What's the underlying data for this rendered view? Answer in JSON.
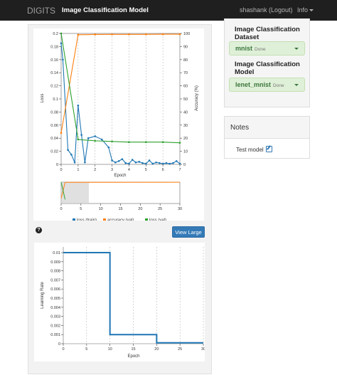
{
  "navbar": {
    "brand": "DIGITS",
    "title": "Image Classification Model",
    "user": "shashank (Logout)",
    "info": "Info"
  },
  "sidebar": {
    "dataset_heading_1": "Image Classification",
    "dataset_heading_2": "Dataset",
    "dataset_name": "mnist",
    "dataset_status": "Done",
    "model_heading_1": "Image Classification",
    "model_heading_2": "Model",
    "model_name": "lenet_mnist",
    "model_status": "Done"
  },
  "notes": {
    "heading": "Notes",
    "text": "Test model"
  },
  "buttons": {
    "view_large": "View Large",
    "help": "?"
  },
  "colors": {
    "loss_train": "#1f77b4",
    "accuracy_val": "#ff7f0e",
    "loss_val": "#2ca02c",
    "lr": "#1f77b4"
  },
  "chart_data": [
    {
      "type": "line",
      "xlabel": "Epoch",
      "ylabel": "Loss",
      "y2label": "Accuracy (%)",
      "xlim": [
        0,
        7
      ],
      "ylim": [
        0,
        0.2
      ],
      "y2lim": [
        0,
        100
      ],
      "xticks": [
        "0",
        "1",
        "2",
        "3",
        "4",
        "5",
        "6",
        "7"
      ],
      "yticks": [
        "0",
        "0.02",
        "0.04",
        "0.06",
        "0.08",
        "0.1",
        "0.12",
        "0.14",
        "0.16",
        "0.18",
        "0.2"
      ],
      "y2ticks": [
        "0",
        "10",
        "20",
        "30",
        "40",
        "50",
        "60",
        "70",
        "80",
        "90",
        "100"
      ],
      "legend": [
        "loss (train)",
        "accuracy (val)",
        "loss (val)"
      ],
      "legend_position": "bottom",
      "series": [
        {
          "name": "loss (train)",
          "axis": "left",
          "x": [
            0,
            0.1,
            0.4,
            0.6,
            0.8,
            1.0,
            1.2,
            1.4,
            1.6,
            2.0,
            2.4,
            2.8,
            3.0,
            3.2,
            3.4,
            3.6,
            3.8,
            4.0,
            4.2,
            4.4,
            4.6,
            4.8,
            5.0,
            5.2,
            5.4,
            5.6,
            5.8,
            6.0,
            6.2,
            6.4,
            6.6,
            6.8,
            7.0
          ],
          "y": [
            0.185,
            0.16,
            0.022,
            0.015,
            0.003,
            0.09,
            0.045,
            0.003,
            0.04,
            0.043,
            0.038,
            0.026,
            0.006,
            0.003,
            0.005,
            0.008,
            0.002,
            0.001,
            0.007,
            0.003,
            0.004,
            0.002,
            0.001,
            0.006,
            0.001,
            0.003,
            0.002,
            0.001,
            0.002,
            0.001,
            0.002,
            0.005,
            0.001
          ]
        },
        {
          "name": "accuracy (val)",
          "axis": "right",
          "x": [
            0,
            1,
            2,
            3,
            4,
            5,
            6,
            7
          ],
          "y": [
            24,
            99,
            99.2,
            99.3,
            99.3,
            99.3,
            99.4,
            99.4
          ]
        },
        {
          "name": "loss (val)",
          "axis": "left",
          "x": [
            0,
            1,
            2,
            3,
            4,
            5,
            6,
            7
          ],
          "y": [
            0.2,
            0.038,
            0.036,
            0.035,
            0.034,
            0.034,
            0.034,
            0.033
          ]
        }
      ]
    },
    {
      "type": "line",
      "xlim": [
        0,
        30
      ],
      "xticks": [
        "0",
        "5",
        "10",
        "15",
        "20",
        "25",
        "30"
      ],
      "selection": [
        0,
        7
      ],
      "series": [
        {
          "name": "accuracy (val)",
          "x": [
            0,
            1,
            30
          ],
          "y": [
            24,
            99,
            99.4
          ]
        },
        {
          "name": "loss (val)",
          "x": [
            0,
            1
          ],
          "y": [
            0.2,
            0.038
          ]
        }
      ]
    },
    {
      "type": "line",
      "xlabel": "Epoch",
      "ylabel": "Learning Rate",
      "xlim": [
        0,
        30
      ],
      "ylim": [
        0,
        0.01
      ],
      "xticks": [
        "0",
        "5",
        "10",
        "15",
        "20",
        "25",
        "30"
      ],
      "yticks": [
        "0",
        "0.001",
        "0.002",
        "0.003",
        "0.004",
        "0.005",
        "0.006",
        "0.007",
        "0.008",
        "0.009",
        "0.01"
      ],
      "series": [
        {
          "name": "Learning Rate",
          "x": [
            0,
            10,
            10,
            20,
            20,
            30
          ],
          "y": [
            0.01,
            0.01,
            0.001,
            0.001,
            0.0001,
            0.0001
          ]
        }
      ]
    }
  ]
}
